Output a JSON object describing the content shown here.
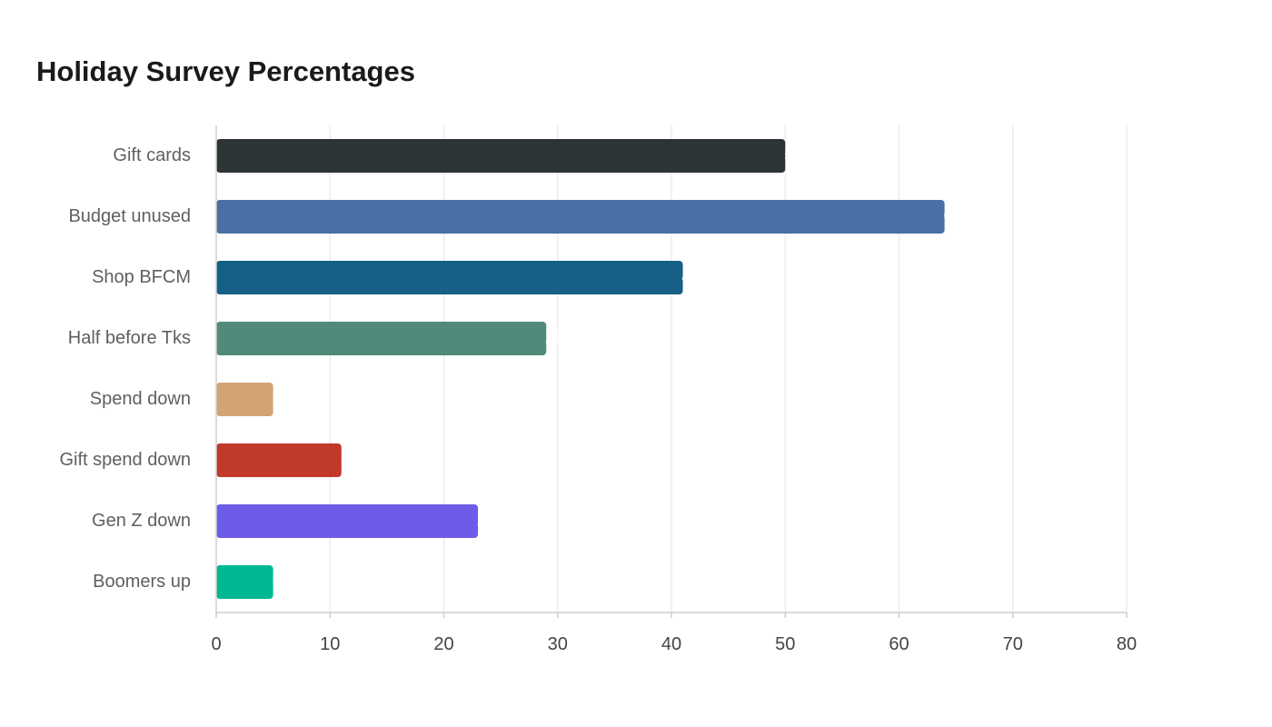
{
  "chart_data": {
    "type": "bar",
    "orientation": "horizontal",
    "title": "Holiday Survey Percentages",
    "xlabel": "",
    "ylabel": "",
    "categories": [
      "Gift cards",
      "Budget unused",
      "Shop BFCM",
      "Half before Tks",
      "Spend down",
      "Gift spend down",
      "Gen Z down",
      "Boomers up"
    ],
    "values": [
      50,
      64,
      41,
      29,
      5,
      11,
      23,
      5
    ],
    "colors": [
      "#2d3436",
      "#4a6fa5",
      "#166088",
      "#4f8a7b",
      "#d4a373",
      "#c0392b",
      "#6c5ce7",
      "#00b894"
    ],
    "xlim": [
      0,
      80
    ],
    "xticks": [
      0,
      10,
      20,
      30,
      40,
      50,
      60,
      70,
      80
    ],
    "grid": true,
    "legend": "none"
  }
}
